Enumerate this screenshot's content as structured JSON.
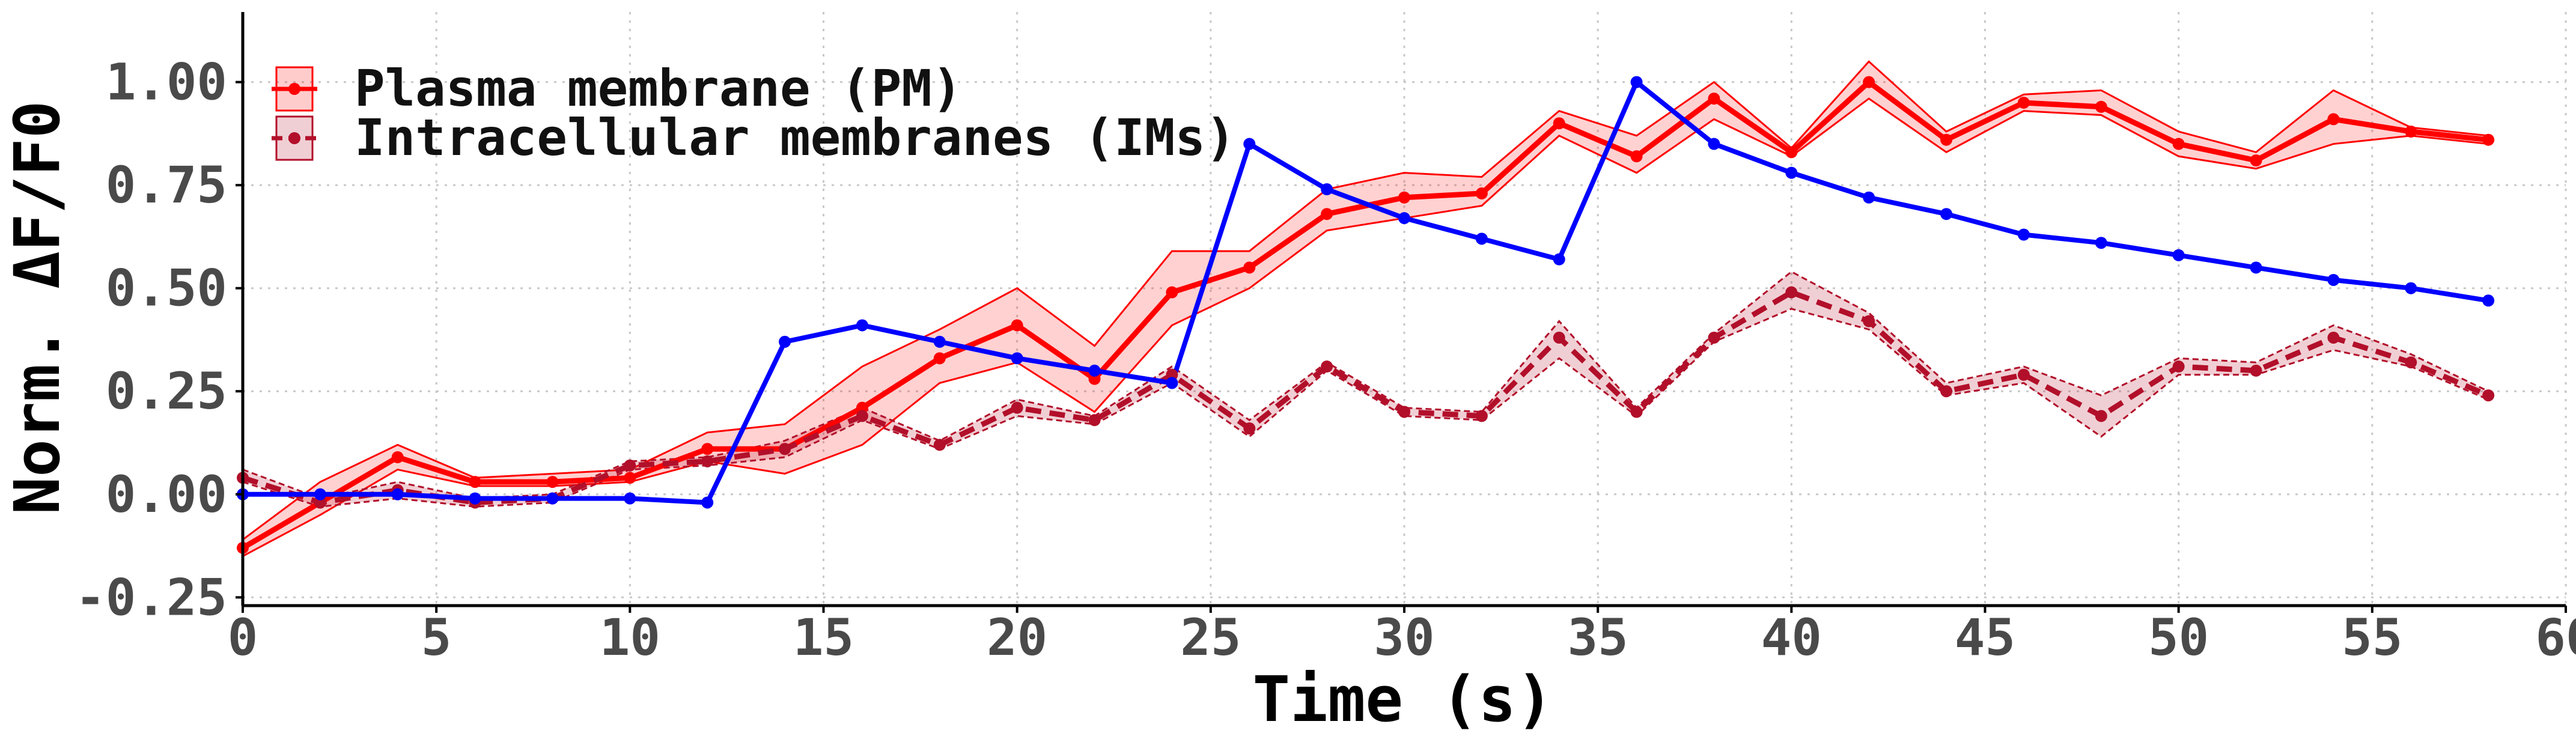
{
  "chart_data": {
    "type": "line",
    "xlabel": "Time (s)",
    "ylabel": "Norm. ΔF/F0",
    "xlim": [
      0,
      60
    ],
    "ylim": [
      -0.27,
      1.17
    ],
    "x_ticks": [
      0,
      5,
      10,
      15,
      20,
      25,
      30,
      35,
      40,
      45,
      50,
      55,
      60
    ],
    "x_tick_labels": [
      "0",
      "5",
      "10",
      "15",
      "20",
      "25",
      "30",
      "35",
      "40",
      "45",
      "50",
      "55",
      "60"
    ],
    "y_ticks": [
      -0.25,
      0.0,
      0.25,
      0.5,
      0.75,
      1.0
    ],
    "y_tick_labels": [
      "-0.25",
      "0.00",
      "0.25",
      "0.50",
      "0.75",
      "1.00"
    ],
    "grid": true,
    "legend_position": "top-left",
    "series": [
      {
        "name": "Plasma membrane (PM)",
        "color": "#ff0000",
        "line_style": "solid",
        "marker": "circle",
        "band": true,
        "x": [
          0,
          2,
          4,
          6,
          8,
          10,
          12,
          14,
          16,
          18,
          20,
          22,
          24,
          26,
          28,
          30,
          32,
          34,
          36,
          38,
          40,
          42,
          44,
          46,
          48,
          50,
          52,
          54,
          56,
          58
        ],
        "y": [
          -0.13,
          -0.02,
          0.09,
          0.03,
          0.03,
          0.04,
          0.11,
          0.11,
          0.21,
          0.33,
          0.41,
          0.28,
          0.49,
          0.55,
          0.68,
          0.72,
          0.73,
          0.9,
          0.82,
          0.96,
          0.83,
          1.0,
          0.86,
          0.95,
          0.94,
          0.85,
          0.81,
          0.91,
          0.88,
          0.86
        ],
        "y_lower": [
          -0.15,
          -0.05,
          0.06,
          0.02,
          0.02,
          0.03,
          0.08,
          0.05,
          0.12,
          0.27,
          0.32,
          0.2,
          0.41,
          0.5,
          0.64,
          0.67,
          0.7,
          0.87,
          0.78,
          0.91,
          0.82,
          0.96,
          0.83,
          0.93,
          0.92,
          0.82,
          0.79,
          0.85,
          0.87,
          0.85
        ],
        "y_upper": [
          -0.11,
          0.03,
          0.12,
          0.04,
          0.05,
          0.06,
          0.15,
          0.17,
          0.31,
          0.4,
          0.5,
          0.36,
          0.59,
          0.59,
          0.74,
          0.78,
          0.77,
          0.93,
          0.87,
          1.0,
          0.84,
          1.05,
          0.88,
          0.97,
          0.98,
          0.88,
          0.83,
          0.98,
          0.89,
          0.87
        ]
      },
      {
        "name": "Intracellular membranes (IMs)",
        "color": "#b20f2a",
        "line_style": "dashed",
        "marker": "circle",
        "band": true,
        "x": [
          0,
          2,
          4,
          6,
          8,
          10,
          12,
          14,
          16,
          18,
          20,
          22,
          24,
          26,
          28,
          30,
          32,
          34,
          36,
          38,
          40,
          42,
          44,
          46,
          48,
          50,
          52,
          54,
          56,
          58
        ],
        "y": [
          0.04,
          -0.02,
          0.01,
          -0.02,
          -0.01,
          0.07,
          0.08,
          0.11,
          0.19,
          0.12,
          0.21,
          0.18,
          0.29,
          0.16,
          0.31,
          0.2,
          0.19,
          0.38,
          0.2,
          0.38,
          0.49,
          0.42,
          0.25,
          0.29,
          0.19,
          0.31,
          0.3,
          0.38,
          0.32,
          0.24
        ],
        "y_lower": [
          0.03,
          -0.03,
          -0.01,
          -0.03,
          -0.02,
          0.06,
          0.07,
          0.09,
          0.18,
          0.11,
          0.19,
          0.17,
          0.27,
          0.14,
          0.3,
          0.19,
          0.18,
          0.33,
          0.19,
          0.37,
          0.45,
          0.4,
          0.24,
          0.27,
          0.14,
          0.29,
          0.29,
          0.35,
          0.31,
          0.23
        ],
        "y_upper": [
          0.06,
          -0.01,
          0.03,
          -0.01,
          0.0,
          0.08,
          0.09,
          0.13,
          0.21,
          0.13,
          0.23,
          0.19,
          0.31,
          0.18,
          0.32,
          0.21,
          0.2,
          0.42,
          0.21,
          0.39,
          0.54,
          0.44,
          0.27,
          0.31,
          0.24,
          0.33,
          0.32,
          0.41,
          0.34,
          0.25
        ]
      },
      {
        "name": "",
        "color": "#0000ff",
        "line_style": "solid",
        "marker": "circle",
        "band": false,
        "x": [
          0,
          2,
          4,
          6,
          8,
          10,
          12,
          14,
          16,
          18,
          20,
          22,
          24,
          26,
          28,
          30,
          32,
          34,
          36,
          38,
          40,
          42,
          44,
          46,
          48,
          50,
          52,
          54,
          56,
          58
        ],
        "y": [
          0.0,
          0.0,
          0.0,
          -0.01,
          -0.01,
          -0.01,
          -0.02,
          0.37,
          0.41,
          0.37,
          0.33,
          0.3,
          0.27,
          0.85,
          0.74,
          0.67,
          0.62,
          0.57,
          1.0,
          0.85,
          0.78,
          0.72,
          0.68,
          0.63,
          0.61,
          0.58,
          0.55,
          0.52,
          0.5,
          0.47
        ]
      }
    ]
  }
}
